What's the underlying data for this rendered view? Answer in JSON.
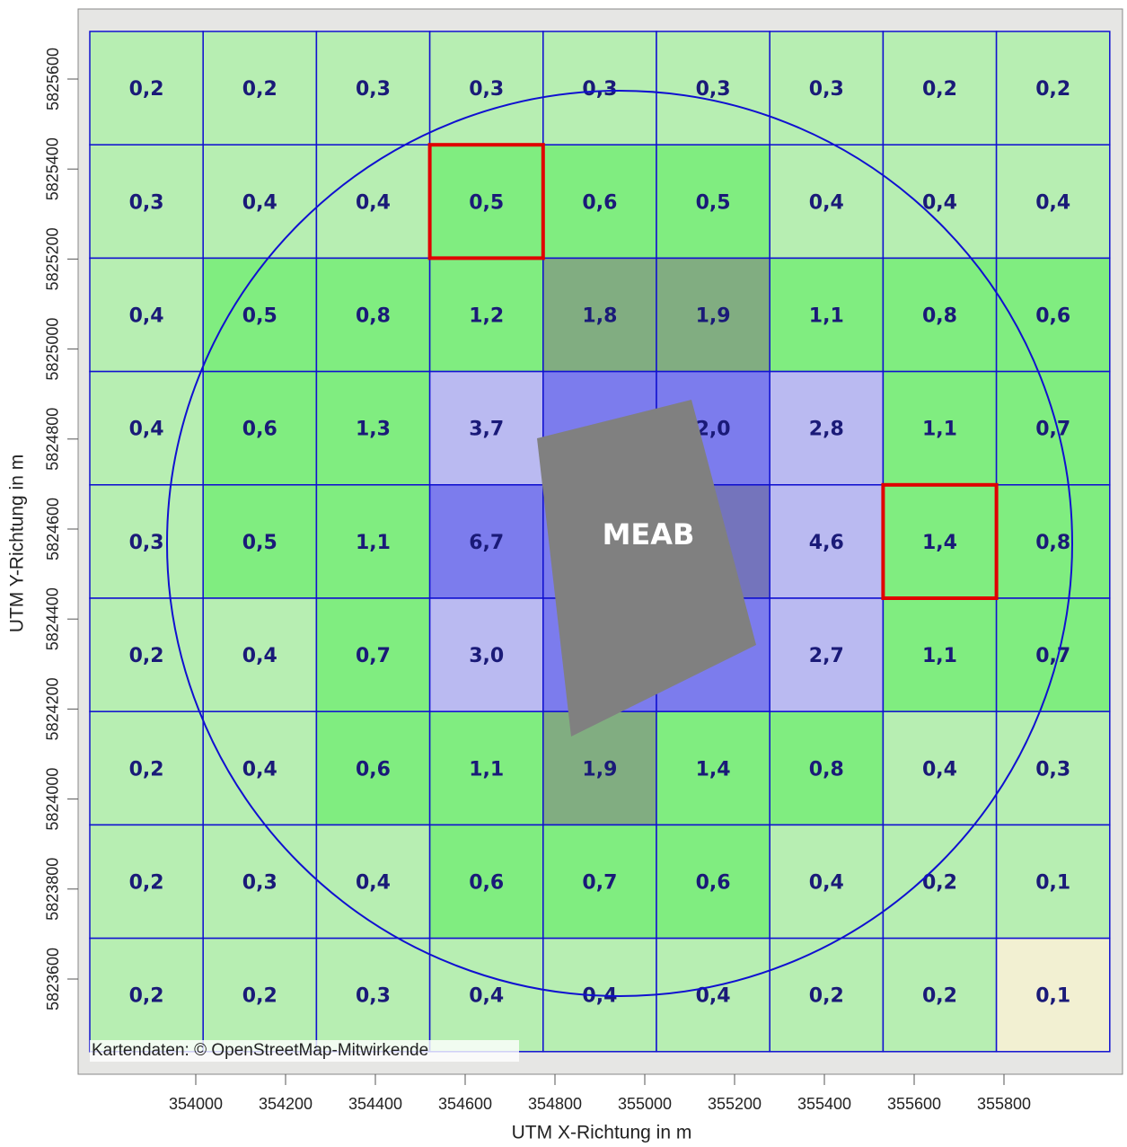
{
  "axes": {
    "x_label": "UTM X-Richtung in m",
    "y_label": "UTM Y-Richtung in m",
    "xticks": [
      354000,
      354200,
      354400,
      354600,
      354800,
      355000,
      355200,
      355400,
      355600,
      355800
    ],
    "yticks": [
      5825600,
      5825400,
      5825200,
      5825000,
      5824800,
      5824600,
      5824400,
      5824200,
      5824000,
      5823800,
      5823600
    ]
  },
  "grid": {
    "rows": [
      [
        {
          "text": "0,2",
          "color": "#b3efae"
        },
        {
          "text": "0,2",
          "color": "#b3efae"
        },
        {
          "text": "0,3",
          "color": "#b3efae"
        },
        {
          "text": "0,3",
          "color": "#b3efae"
        },
        {
          "text": "0,3",
          "color": "#b3efae"
        },
        {
          "text": "0,3",
          "color": "#b3efae"
        },
        {
          "text": "0,3",
          "color": "#b3efae"
        },
        {
          "text": "0,2",
          "color": "#b3efae"
        },
        {
          "text": "0,2",
          "color": "#b3efae"
        }
      ],
      [
        {
          "text": "0,3",
          "color": "#b3efae"
        },
        {
          "text": "0,4",
          "color": "#b3efae"
        },
        {
          "text": "0,4",
          "color": "#b3efae"
        },
        {
          "text": "0,5",
          "color": "#77ee77"
        },
        {
          "text": "0,6",
          "color": "#77ee77"
        },
        {
          "text": "0,5",
          "color": "#77ee77"
        },
        {
          "text": "0,4",
          "color": "#b3efae"
        },
        {
          "text": "0,4",
          "color": "#b3efae"
        },
        {
          "text": "0,4",
          "color": "#b3efae"
        }
      ],
      [
        {
          "text": "0,4",
          "color": "#b3efae"
        },
        {
          "text": "0,5",
          "color": "#77ee77"
        },
        {
          "text": "0,8",
          "color": "#77ee77"
        },
        {
          "text": "1,2",
          "color": "#77ee77"
        },
        {
          "text": "1,8",
          "color": "#78a878"
        },
        {
          "text": "1,9",
          "color": "#78a878"
        },
        {
          "text": "1,1",
          "color": "#77ee77"
        },
        {
          "text": "0,8",
          "color": "#77ee77"
        },
        {
          "text": "0,6",
          "color": "#77ee77"
        }
      ],
      [
        {
          "text": "0,4",
          "color": "#b3efae"
        },
        {
          "text": "0,6",
          "color": "#77ee77"
        },
        {
          "text": "1,3",
          "color": "#77ee77"
        },
        {
          "text": "3,7",
          "color": "#b6b6f2"
        },
        {
          "text": null,
          "color": "#7373ee"
        },
        {
          "text": "2,0",
          "color": "#7373ee"
        },
        {
          "text": "2,8",
          "color": "#b6b6f2"
        },
        {
          "text": "1,1",
          "color": "#77ee77"
        },
        {
          "text": "0,7",
          "color": "#77ee77"
        }
      ],
      [
        {
          "text": "0,3",
          "color": "#b3efae"
        },
        {
          "text": "0,5",
          "color": "#77ee77"
        },
        {
          "text": "1,1",
          "color": "#77ee77"
        },
        {
          "text": "6,7",
          "color": "#7373ee"
        },
        {
          "text": null,
          "color": "#7373ee"
        },
        {
          "text": null,
          "color": "#6a6ab8"
        },
        {
          "text": "4,6",
          "color": "#b6b6f2"
        },
        {
          "text": "1,4",
          "color": "#77ee77"
        },
        {
          "text": "0,8",
          "color": "#77ee77"
        }
      ],
      [
        {
          "text": "0,2",
          "color": "#b3efae"
        },
        {
          "text": "0,4",
          "color": "#b3efae"
        },
        {
          "text": "0,7",
          "color": "#77ee77"
        },
        {
          "text": "3,0",
          "color": "#b6b6f2"
        },
        {
          "text": null,
          "color": "#7373ee"
        },
        {
          "text": null,
          "color": "#7373ee"
        },
        {
          "text": "2,7",
          "color": "#b6b6f2"
        },
        {
          "text": "1,1",
          "color": "#77ee77"
        },
        {
          "text": "0,7",
          "color": "#77ee77"
        }
      ],
      [
        {
          "text": "0,2",
          "color": "#b3efae"
        },
        {
          "text": "0,4",
          "color": "#b3efae"
        },
        {
          "text": "0,6",
          "color": "#77ee77"
        },
        {
          "text": "1,1",
          "color": "#77ee77"
        },
        {
          "text": "1,9",
          "color": "#78a878"
        },
        {
          "text": "1,4",
          "color": "#77ee77"
        },
        {
          "text": "0,8",
          "color": "#77ee77"
        },
        {
          "text": "0,4",
          "color": "#b3efae"
        },
        {
          "text": "0,3",
          "color": "#b3efae"
        }
      ],
      [
        {
          "text": "0,2",
          "color": "#b3efae"
        },
        {
          "text": "0,3",
          "color": "#b3efae"
        },
        {
          "text": "0,4",
          "color": "#b3efae"
        },
        {
          "text": "0,6",
          "color": "#77ee77"
        },
        {
          "text": "0,7",
          "color": "#77ee77"
        },
        {
          "text": "0,6",
          "color": "#77ee77"
        },
        {
          "text": "0,4",
          "color": "#b3efae"
        },
        {
          "text": "0,2",
          "color": "#b3efae"
        },
        {
          "text": "0,1",
          "color": "#b3efae"
        }
      ],
      [
        {
          "text": "0,2",
          "color": "#b3efae"
        },
        {
          "text": "0,2",
          "color": "#b3efae"
        },
        {
          "text": "0,3",
          "color": "#b3efae"
        },
        {
          "text": "0,4",
          "color": "#b3efae"
        },
        {
          "text": "0,4",
          "color": "#b3efae"
        },
        {
          "text": "0,4",
          "color": "#b3efae"
        },
        {
          "text": "0,2",
          "color": "#b3efae"
        },
        {
          "text": "0,2",
          "color": "#b3efae"
        },
        {
          "text": "0,1",
          "color": "#f3f1d0"
        }
      ]
    ]
  },
  "highlight": [
    [
      1,
      3
    ],
    [
      4,
      7
    ]
  ],
  "source": "MEAB",
  "attribution": "Kartendaten: © OpenStreetMap-Mitwirkende"
}
